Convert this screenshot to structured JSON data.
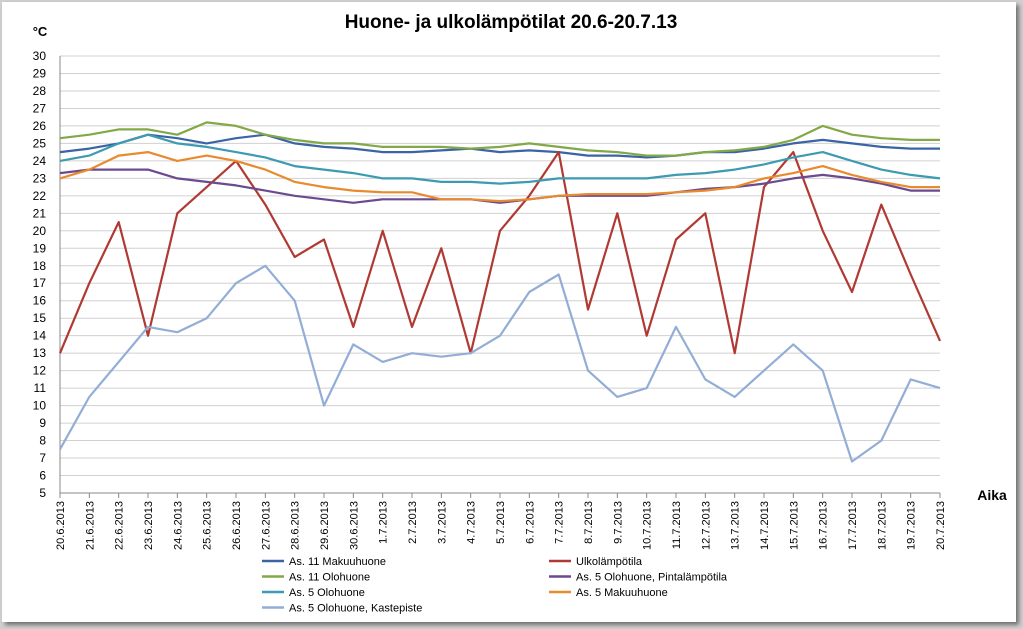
{
  "chart_data": {
    "type": "line",
    "title": "Huone- ja ulkolämpötilat 20.6-20.7.13",
    "ylabel": "°C",
    "xlabel": "Aika",
    "ylim": [
      5,
      30
    ],
    "yticks": [
      5,
      6,
      7,
      8,
      9,
      10,
      11,
      12,
      13,
      14,
      15,
      16,
      17,
      18,
      19,
      20,
      21,
      22,
      23,
      24,
      25,
      26,
      27,
      28,
      29,
      30
    ],
    "x": [
      "20.6.2013",
      "21.6.2013",
      "22.6.2013",
      "23.6.2013",
      "24.6.2013",
      "25.6.2013",
      "26.6.2013",
      "27.6.2013",
      "28.6.2013",
      "29.6.2013",
      "30.6.2013",
      "1.7.2013",
      "2.7.2013",
      "3.7.2013",
      "4.7.2013",
      "5.7.2013",
      "6.7.2013",
      "7.7.2013",
      "8.7.2013",
      "9.7.2013",
      "10.7.2013",
      "11.7.2013",
      "12.7.2013",
      "13.7.2013",
      "14.7.2013",
      "15.7.2013",
      "16.7.2013",
      "17.7.2013",
      "18.7.2013",
      "19.7.2013",
      "20.7.2013"
    ],
    "grid": true,
    "legend_position": "bottom",
    "series": [
      {
        "name": "As. 11 Makuuhuone",
        "color": "#3a64a5",
        "values": [
          24.5,
          24.7,
          25.0,
          25.5,
          25.3,
          25.0,
          25.3,
          25.5,
          25.0,
          24.8,
          24.7,
          24.5,
          24.5,
          24.6,
          24.7,
          24.5,
          24.6,
          24.5,
          24.3,
          24.3,
          24.2,
          24.3,
          24.5,
          24.5,
          24.7,
          25.0,
          25.2,
          25.0,
          24.8,
          24.7,
          24.7
        ]
      },
      {
        "name": "Ulkolämpötila",
        "color": "#b03a33",
        "values": [
          13.0,
          17.0,
          20.5,
          14.0,
          21.0,
          22.5,
          24.0,
          21.5,
          18.5,
          19.5,
          14.5,
          20.0,
          14.5,
          19.0,
          13.0,
          20.0,
          22.0,
          24.5,
          15.5,
          21.0,
          14.0,
          19.5,
          21.0,
          13.0,
          22.5,
          24.5,
          20.0,
          16.5,
          21.5,
          17.5,
          13.7
        ]
      },
      {
        "name": "As. 11 Olohuone",
        "color": "#82a848",
        "values": [
          25.3,
          25.5,
          25.8,
          25.8,
          25.5,
          26.2,
          26.0,
          25.5,
          25.2,
          25.0,
          25.0,
          24.8,
          24.8,
          24.8,
          24.7,
          24.8,
          25.0,
          24.8,
          24.6,
          24.5,
          24.3,
          24.3,
          24.5,
          24.6,
          24.8,
          25.2,
          26.0,
          25.5,
          25.3,
          25.2,
          25.2
        ]
      },
      {
        "name": "As. 5 Olohuone, Pintalämpötila",
        "color": "#6b4a8f",
        "values": [
          23.3,
          23.5,
          23.5,
          23.5,
          23.0,
          22.8,
          22.6,
          22.3,
          22.0,
          21.8,
          21.6,
          21.8,
          21.8,
          21.8,
          21.8,
          21.6,
          21.8,
          22.0,
          22.0,
          22.0,
          22.0,
          22.2,
          22.4,
          22.5,
          22.7,
          23.0,
          23.2,
          23.0,
          22.7,
          22.3,
          22.3
        ]
      },
      {
        "name": "As. 5 Olohuone",
        "color": "#3c9bb0",
        "values": [
          24.0,
          24.3,
          25.0,
          25.5,
          25.0,
          24.8,
          24.5,
          24.2,
          23.7,
          23.5,
          23.3,
          23.0,
          23.0,
          22.8,
          22.8,
          22.7,
          22.8,
          23.0,
          23.0,
          23.0,
          23.0,
          23.2,
          23.3,
          23.5,
          23.8,
          24.2,
          24.5,
          24.0,
          23.5,
          23.2,
          23.0
        ]
      },
      {
        "name": "As. 5 Makuuhuone",
        "color": "#e88a2d",
        "values": [
          23.0,
          23.5,
          24.3,
          24.5,
          24.0,
          24.3,
          24.0,
          23.5,
          22.8,
          22.5,
          22.3,
          22.2,
          22.2,
          21.8,
          21.8,
          21.7,
          21.8,
          22.0,
          22.1,
          22.1,
          22.1,
          22.2,
          22.3,
          22.5,
          23.0,
          23.3,
          23.7,
          23.2,
          22.8,
          22.5,
          22.5
        ]
      },
      {
        "name": "As. 5 Olohuone, Kastepiste",
        "color": "#93aed6",
        "values": [
          7.5,
          10.5,
          12.5,
          14.5,
          14.2,
          15.0,
          17.0,
          18.0,
          16.0,
          10.0,
          13.5,
          12.5,
          13.0,
          12.8,
          13.0,
          14.0,
          16.5,
          17.5,
          12.0,
          10.5,
          11.0,
          14.5,
          11.5,
          10.5,
          12.0,
          13.5,
          12.0,
          6.8,
          8.0,
          11.5,
          11.0
        ]
      }
    ]
  }
}
